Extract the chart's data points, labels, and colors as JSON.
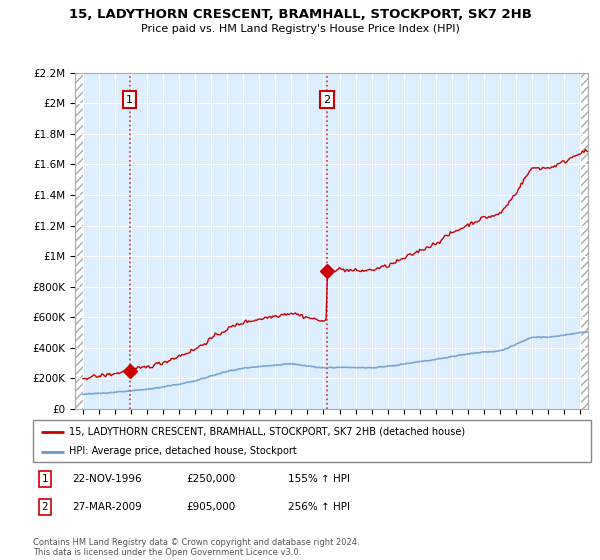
{
  "title": "15, LADYTHORN CRESCENT, BRAMHALL, STOCKPORT, SK7 2HB",
  "subtitle": "Price paid vs. HM Land Registry's House Price Index (HPI)",
  "ylim": [
    0,
    2200000
  ],
  "yticks": [
    0,
    200000,
    400000,
    600000,
    800000,
    1000000,
    1200000,
    1400000,
    1600000,
    1800000,
    2000000,
    2200000
  ],
  "ytick_labels": [
    "£0",
    "£200K",
    "£400K",
    "£600K",
    "£800K",
    "£1M",
    "£1.2M",
    "£1.4M",
    "£1.6M",
    "£1.8M",
    "£2M",
    "£2.2M"
  ],
  "xlim_start": 1993.5,
  "xlim_end": 2025.5,
  "background_color": "#ffffff",
  "plot_bg_color": "#ddeeff",
  "grid_color": "#ffffff",
  "sale1_x": 1996.9,
  "sale1_y": 250000,
  "sale1_label": "1",
  "sale1_date": "22-NOV-1996",
  "sale1_price": "£250,000",
  "sale1_hpi": "155% ↑ HPI",
  "sale2_x": 2009.23,
  "sale2_y": 905000,
  "sale2_label": "2",
  "sale2_date": "27-MAR-2009",
  "sale2_price": "£905,000",
  "sale2_hpi": "256% ↑ HPI",
  "house_line_color": "#cc0000",
  "hpi_line_color": "#6699cc",
  "legend_house": "15, LADYTHORN CRESCENT, BRAMHALL, STOCKPORT, SK7 2HB (detached house)",
  "legend_hpi": "HPI: Average price, detached house, Stockport",
  "footnote": "Contains HM Land Registry data © Crown copyright and database right 2024.\nThis data is licensed under the Open Government Licence v3.0.",
  "vline1_x": 1996.9,
  "vline2_x": 2009.23
}
